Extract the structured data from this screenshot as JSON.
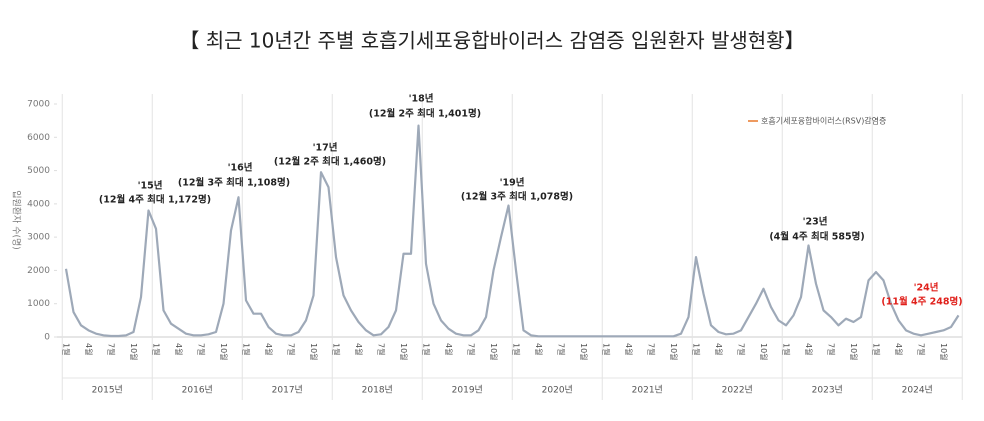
{
  "chart_data": {
    "type": "line",
    "title": "【 최근 10년간 주별 호흡기세포융합바이러스 감염증 입원환자 발생현황】",
    "y_label": "입원환자 수(명)",
    "categories": [
      "1월",
      null,
      null,
      "4월",
      null,
      null,
      "7월",
      null,
      null,
      "10월",
      null,
      null,
      "1월",
      null,
      null,
      "4월",
      null,
      null,
      "7월",
      null,
      null,
      "10월",
      null,
      null,
      "1월",
      null,
      null,
      "4월",
      null,
      null,
      "7월",
      null,
      null,
      "10월",
      null,
      null,
      "1월",
      null,
      null,
      "4월",
      null,
      null,
      "7월",
      null,
      null,
      "10월",
      null,
      null,
      "1월",
      null,
      null,
      "4월",
      null,
      null,
      "7월",
      null,
      null,
      "10월",
      null,
      null,
      "1월",
      null,
      null,
      "4월",
      null,
      null,
      "7월",
      null,
      null,
      "10월",
      null,
      null,
      "1월",
      null,
      null,
      "4월",
      null,
      null,
      "7월",
      null,
      null,
      "10월",
      null,
      null,
      "1월",
      null,
      null,
      "4월",
      null,
      null,
      "7월",
      null,
      null,
      "10월",
      null,
      null,
      "1월",
      null,
      null,
      "4월",
      null,
      null,
      "7월",
      null,
      null,
      "10월",
      null,
      null,
      "1월",
      null,
      null,
      "4월",
      null,
      null,
      "7월",
      null,
      null,
      "10월",
      null,
      null
    ],
    "years": [
      "2015년",
      "2016년",
      "2017년",
      "2018년",
      "2019년",
      "2020년",
      "2021년",
      "2022년",
      "2023년",
      "2024년"
    ],
    "series": [
      {
        "name": "호흡기세포융합바이러스(RSV)감염증",
        "color": "#9ea9b8",
        "legend_color": "#e8792b",
        "values": [
          2050,
          750,
          350,
          200,
          100,
          50,
          30,
          30,
          50,
          150,
          1200,
          3800,
          3250,
          800,
          400,
          250,
          100,
          50,
          50,
          80,
          150,
          1000,
          3200,
          4200,
          1100,
          700,
          700,
          300,
          100,
          50,
          50,
          150,
          500,
          1250,
          4950,
          4500,
          2400,
          1250,
          800,
          450,
          200,
          50,
          80,
          300,
          800,
          2500,
          2500,
          6350,
          2200,
          1000,
          500,
          250,
          100,
          50,
          50,
          200,
          600,
          2000,
          3000,
          3950,
          2000,
          200,
          50,
          20,
          20,
          20,
          20,
          20,
          20,
          20,
          20,
          20,
          20,
          20,
          20,
          20,
          20,
          20,
          20,
          20,
          20,
          20,
          100,
          600,
          2400,
          1300,
          350,
          150,
          80,
          100,
          200,
          600,
          1000,
          1450,
          900,
          500,
          350,
          650,
          1200,
          2750,
          1600,
          800,
          600,
          350,
          550,
          450,
          600,
          1700,
          1950,
          1700,
          1000,
          500,
          200,
          100,
          50,
          100,
          150,
          200,
          300,
          650
        ]
      }
    ],
    "ylim": [
      0,
      7000
    ],
    "yticks": [
      0,
      1000,
      2000,
      3000,
      4000,
      5000,
      6000,
      7000
    ],
    "annotations": [
      {
        "year": "'15년",
        "detail": "(12월 4주 최대 1,172명)"
      },
      {
        "year": "'16년",
        "detail": "(12월 3주 최대 1,108명)"
      },
      {
        "year": "'17년",
        "detail": "(12월 2주 최대 1,460명)"
      },
      {
        "year": "'18년",
        "detail": "(12월 2주 최대 1,401명)"
      },
      {
        "year": "'19년",
        "detail": "(12월 3주 최대 1,078명)"
      },
      {
        "year": "'23년",
        "detail": "(4월 4주 최대 585명)"
      },
      {
        "year": "'24년",
        "detail": "(11월 4주 248명)",
        "color": "#e0201b"
      }
    ]
  }
}
